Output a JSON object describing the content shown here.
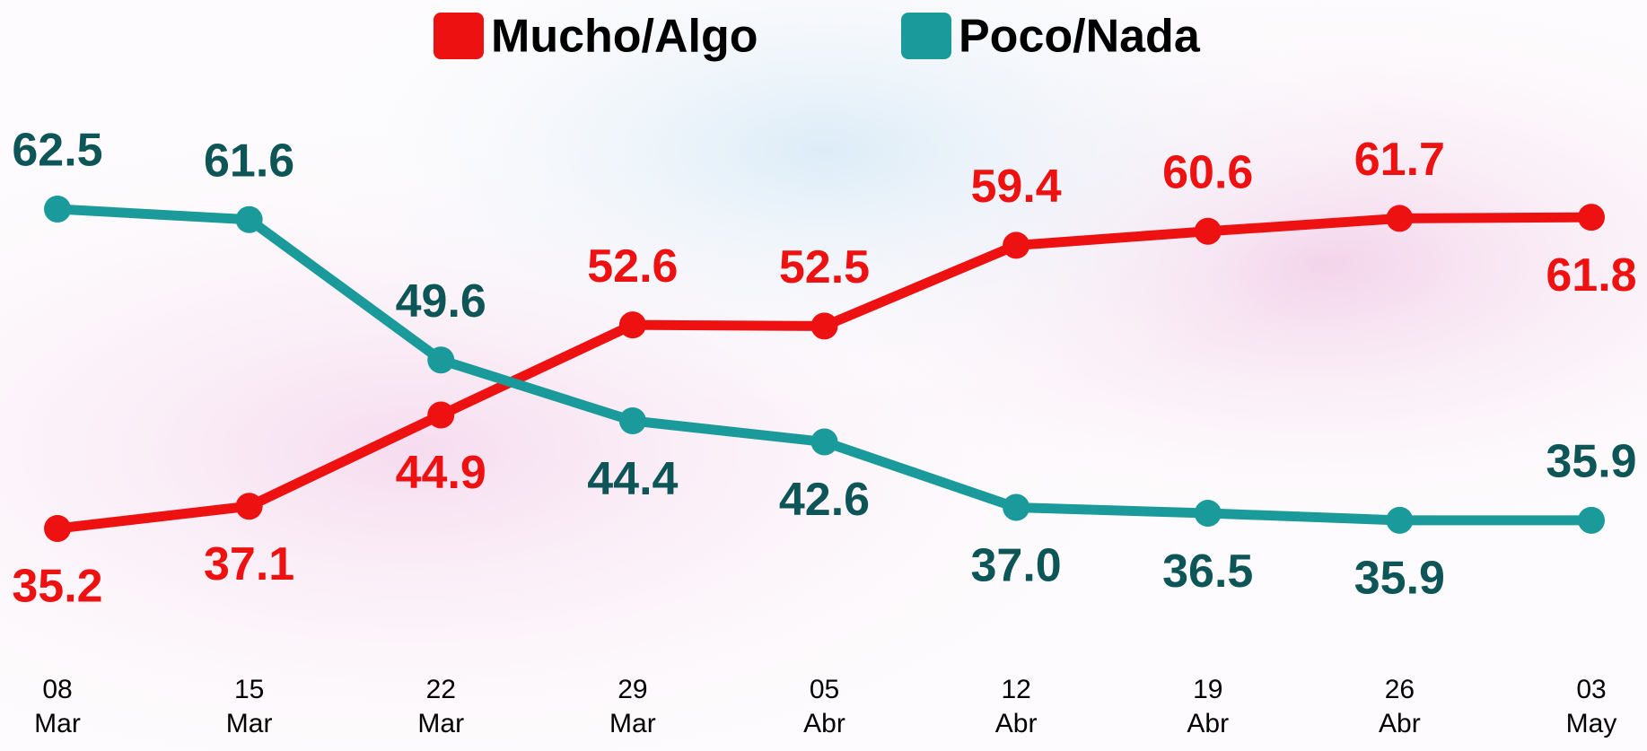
{
  "chart_data": {
    "type": "line",
    "categories": [
      [
        "08",
        "Mar"
      ],
      [
        "15",
        "Mar"
      ],
      [
        "22",
        "Mar"
      ],
      [
        "29",
        "Mar"
      ],
      [
        "05",
        "Abr"
      ],
      [
        "12",
        "Abr"
      ],
      [
        "19",
        "Abr"
      ],
      [
        "26",
        "Abr"
      ],
      [
        "03",
        "May"
      ]
    ],
    "series": [
      {
        "name": "Mucho/Algo",
        "color": "#ee1111",
        "label_color": "#ee1111",
        "values": [
          35.2,
          37.1,
          44.9,
          52.6,
          52.5,
          59.4,
          60.6,
          61.7,
          61.8
        ],
        "value_labels": [
          "35.2",
          "37.1",
          "44.9",
          "52.6",
          "52.5",
          "59.4",
          "60.6",
          "61.7",
          "61.8"
        ]
      },
      {
        "name": "Poco/Nada",
        "color": "#1a9a9a",
        "label_color": "#0d5557",
        "values": [
          62.5,
          61.6,
          49.6,
          44.4,
          42.6,
          37.0,
          36.5,
          35.9,
          35.9
        ],
        "value_labels": [
          "62.5",
          "61.6",
          "49.6",
          "44.4",
          "42.6",
          "37.0",
          "36.5",
          "35.9",
          "35.9"
        ]
      }
    ]
  }
}
